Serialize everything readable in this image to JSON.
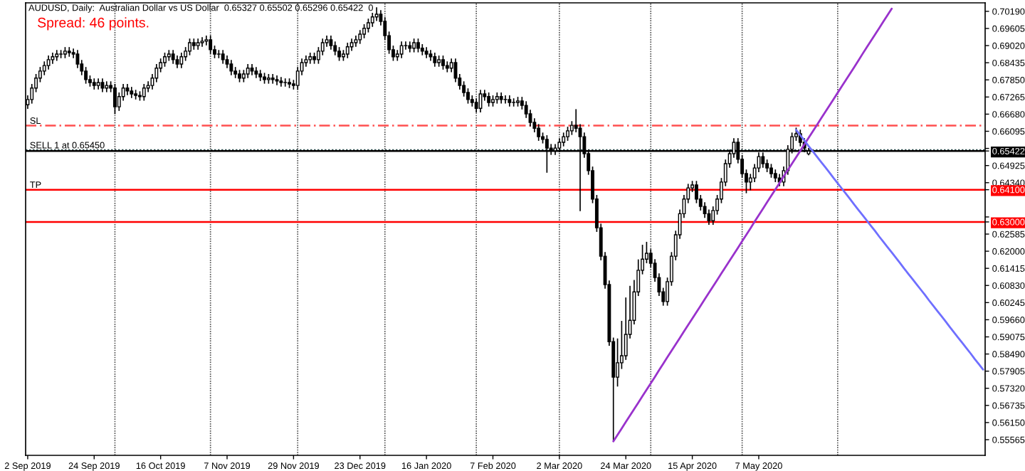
{
  "chart_data": {
    "type": "candlestick",
    "title": "AUDUSD, Daily:  Australian Dollar vs US Dollar  0.65327 0.65502 0.65296 0.65422  0",
    "subtitle": "Spread: 46 points.",
    "color": "#000000",
    "categories": [
      "2 Sep 2019",
      null,
      null,
      null,
      null,
      null,
      null,
      null,
      null,
      null,
      null,
      null,
      null,
      null,
      null,
      null,
      "24 Sep 2019",
      null,
      null,
      null,
      null,
      null,
      null,
      null,
      null,
      null,
      null,
      null,
      null,
      null,
      null,
      null,
      "16 Oct 2019",
      null,
      null,
      null,
      null,
      null,
      null,
      null,
      null,
      null,
      null,
      null,
      null,
      null,
      null,
      null,
      "7 Nov 2019",
      null,
      null,
      null,
      null,
      null,
      null,
      null,
      null,
      null,
      null,
      null,
      null,
      null,
      null,
      null,
      "29 Nov 2019",
      null,
      null,
      null,
      null,
      null,
      null,
      null,
      null,
      null,
      null,
      null,
      null,
      null,
      null,
      null,
      "23 Dec 2019",
      null,
      null,
      null,
      null,
      null,
      null,
      null,
      null,
      null,
      null,
      null,
      null,
      null,
      null,
      null,
      "16 Jan 2020",
      null,
      null,
      null,
      null,
      null,
      null,
      null,
      null,
      null,
      null,
      null,
      null,
      null,
      null,
      null,
      "7 Feb 2020",
      null,
      null,
      null,
      null,
      null,
      null,
      null,
      null,
      null,
      null,
      null,
      null,
      null,
      null,
      null,
      "2 Mar 2020",
      null,
      null,
      null,
      null,
      null,
      null,
      null,
      null,
      null,
      null,
      null,
      null,
      null,
      null,
      null,
      "24 Mar 2020",
      null,
      null,
      null,
      null,
      null,
      null,
      null,
      null,
      null,
      null,
      null,
      null,
      null,
      null,
      null,
      "15 Apr 2020",
      null,
      null,
      null,
      null,
      null,
      null,
      null,
      null,
      null,
      null,
      null,
      null,
      null,
      null,
      null,
      "7 May 2020",
      null,
      null,
      null,
      null,
      null,
      null,
      null,
      null,
      null,
      null,
      null,
      null,
      null,
      null,
      null,
      null,
      null,
      null,
      null,
      null,
      null,
      null,
      null,
      null,
      null,
      null,
      null,
      null,
      null,
      null,
      null,
      null,
      null,
      null,
      null,
      null,
      null,
      null,
      null,
      null,
      null,
      null,
      null,
      null,
      null,
      null,
      null,
      null,
      null,
      null,
      null,
      null,
      null,
      null
    ],
    "ohlc": [
      [
        0.67,
        0.673,
        0.6688,
        0.6718
      ],
      [
        0.6718,
        0.6769,
        0.6706,
        0.6757
      ],
      [
        0.6757,
        0.6803,
        0.6745,
        0.6791
      ],
      [
        0.6791,
        0.6827,
        0.6779,
        0.6815
      ],
      [
        0.6815,
        0.6846,
        0.6803,
        0.6834
      ],
      [
        0.6834,
        0.6866,
        0.6822,
        0.6854
      ],
      [
        0.6854,
        0.6876,
        0.6842,
        0.6864
      ],
      [
        0.6864,
        0.6885,
        0.6852,
        0.6873
      ],
      [
        0.6873,
        0.6885,
        0.6861,
        0.6873
      ],
      [
        0.6873,
        0.6895,
        0.6861,
        0.6883
      ],
      [
        0.6883,
        0.6895,
        0.6866,
        0.6878
      ],
      [
        0.6878,
        0.689,
        0.6861,
        0.6873
      ],
      [
        0.6873,
        0.6885,
        0.6827,
        0.6839
      ],
      [
        0.6839,
        0.6851,
        0.6803,
        0.6815
      ],
      [
        0.6815,
        0.6827,
        0.6774,
        0.6786
      ],
      [
        0.6786,
        0.6798,
        0.6764,
        0.6776
      ],
      [
        0.6776,
        0.6788,
        0.6754,
        0.6766
      ],
      [
        0.6766,
        0.6788,
        0.6754,
        0.6776
      ],
      [
        0.6776,
        0.6788,
        0.6745,
        0.6757
      ],
      [
        0.6757,
        0.6778,
        0.6745,
        0.6766
      ],
      [
        0.6766,
        0.6778,
        0.6745,
        0.6757
      ],
      [
        0.6757,
        0.6769,
        0.667,
        0.6693
      ],
      [
        0.6693,
        0.674,
        0.6681,
        0.6728
      ],
      [
        0.6728,
        0.6769,
        0.6716,
        0.6757
      ],
      [
        0.6757,
        0.6769,
        0.6735,
        0.6747
      ],
      [
        0.6747,
        0.6759,
        0.6725,
        0.6737
      ],
      [
        0.6737,
        0.6749,
        0.672,
        0.6732
      ],
      [
        0.6732,
        0.6744,
        0.6716,
        0.6728
      ],
      [
        0.6728,
        0.6769,
        0.6716,
        0.6757
      ],
      [
        0.6757,
        0.6778,
        0.6745,
        0.6766
      ],
      [
        0.6766,
        0.6803,
        0.6754,
        0.6791
      ],
      [
        0.6791,
        0.6837,
        0.6779,
        0.6825
      ],
      [
        0.6825,
        0.6856,
        0.6813,
        0.6844
      ],
      [
        0.6844,
        0.6876,
        0.6832,
        0.6864
      ],
      [
        0.6864,
        0.6885,
        0.6852,
        0.6873
      ],
      [
        0.6873,
        0.6885,
        0.6842,
        0.6854
      ],
      [
        0.6854,
        0.6866,
        0.6827,
        0.6839
      ],
      [
        0.6839,
        0.6876,
        0.6827,
        0.6864
      ],
      [
        0.6864,
        0.6895,
        0.6852,
        0.6883
      ],
      [
        0.6883,
        0.6924,
        0.6871,
        0.6912
      ],
      [
        0.6912,
        0.6924,
        0.689,
        0.6902
      ],
      [
        0.6902,
        0.6924,
        0.689,
        0.6912
      ],
      [
        0.6912,
        0.6929,
        0.69,
        0.6917
      ],
      [
        0.6917,
        0.6934,
        0.6905,
        0.6922
      ],
      [
        0.6922,
        0.6934,
        0.6876,
        0.6888
      ],
      [
        0.6888,
        0.69,
        0.6861,
        0.6873
      ],
      [
        0.6873,
        0.6885,
        0.6861,
        0.6873
      ],
      [
        0.6873,
        0.6885,
        0.6842,
        0.6854
      ],
      [
        0.6854,
        0.6866,
        0.6827,
        0.6839
      ],
      [
        0.6839,
        0.6851,
        0.6803,
        0.6815
      ],
      [
        0.6815,
        0.6827,
        0.6793,
        0.6805
      ],
      [
        0.6805,
        0.6817,
        0.6779,
        0.6791
      ],
      [
        0.6791,
        0.6817,
        0.6779,
        0.6805
      ],
      [
        0.6805,
        0.6837,
        0.6793,
        0.6825
      ],
      [
        0.6825,
        0.6837,
        0.6803,
        0.6815
      ],
      [
        0.6815,
        0.6827,
        0.6793,
        0.6805
      ],
      [
        0.6805,
        0.6817,
        0.6783,
        0.6795
      ],
      [
        0.6795,
        0.6807,
        0.6774,
        0.6786
      ],
      [
        0.6786,
        0.6803,
        0.6774,
        0.6791
      ],
      [
        0.6791,
        0.6803,
        0.6774,
        0.6786
      ],
      [
        0.6786,
        0.6798,
        0.6769,
        0.6781
      ],
      [
        0.6781,
        0.6793,
        0.6764,
        0.6776
      ],
      [
        0.6776,
        0.6788,
        0.6764,
        0.6776
      ],
      [
        0.6776,
        0.6788,
        0.6759,
        0.6771
      ],
      [
        0.6771,
        0.6783,
        0.6754,
        0.6766
      ],
      [
        0.6766,
        0.6827,
        0.6754,
        0.6815
      ],
      [
        0.6815,
        0.6856,
        0.6803,
        0.6844
      ],
      [
        0.6844,
        0.6866,
        0.6832,
        0.6854
      ],
      [
        0.6854,
        0.6876,
        0.6842,
        0.6864
      ],
      [
        0.6864,
        0.6876,
        0.6842,
        0.6854
      ],
      [
        0.6854,
        0.6895,
        0.6842,
        0.6883
      ],
      [
        0.6883,
        0.6924,
        0.6871,
        0.6912
      ],
      [
        0.6912,
        0.6934,
        0.69,
        0.6922
      ],
      [
        0.6922,
        0.6934,
        0.689,
        0.6902
      ],
      [
        0.6902,
        0.6914,
        0.6871,
        0.6883
      ],
      [
        0.6883,
        0.6895,
        0.6852,
        0.6864
      ],
      [
        0.6864,
        0.6885,
        0.6852,
        0.6873
      ],
      [
        0.6873,
        0.691,
        0.6861,
        0.6898
      ],
      [
        0.6898,
        0.6924,
        0.6886,
        0.6912
      ],
      [
        0.6912,
        0.6934,
        0.69,
        0.6922
      ],
      [
        0.6922,
        0.6953,
        0.691,
        0.6941
      ],
      [
        0.6941,
        0.6973,
        0.6929,
        0.6961
      ],
      [
        0.6961,
        0.6992,
        0.6949,
        0.698
      ],
      [
        0.698,
        0.7012,
        0.6968,
        0.7
      ],
      [
        0.7,
        0.7031,
        0.6988,
        0.7009
      ],
      [
        0.7009,
        0.7021,
        0.6973,
        0.6985
      ],
      [
        0.6985,
        0.6997,
        0.6924,
        0.6936
      ],
      [
        0.6936,
        0.6948,
        0.6876,
        0.6888
      ],
      [
        0.6888,
        0.69,
        0.6852,
        0.6864
      ],
      [
        0.6864,
        0.6885,
        0.6852,
        0.6873
      ],
      [
        0.6873,
        0.6914,
        0.6861,
        0.6902
      ],
      [
        0.6902,
        0.6914,
        0.689,
        0.6902
      ],
      [
        0.6902,
        0.6914,
        0.6881,
        0.6893
      ],
      [
        0.6893,
        0.6924,
        0.6881,
        0.6912
      ],
      [
        0.6912,
        0.6924,
        0.6881,
        0.6893
      ],
      [
        0.6893,
        0.6905,
        0.6871,
        0.6883
      ],
      [
        0.6883,
        0.6895,
        0.6861,
        0.6873
      ],
      [
        0.6873,
        0.6885,
        0.6852,
        0.6864
      ],
      [
        0.6864,
        0.6876,
        0.6832,
        0.6844
      ],
      [
        0.6844,
        0.6866,
        0.6832,
        0.6854
      ],
      [
        0.6854,
        0.6866,
        0.6822,
        0.6834
      ],
      [
        0.6834,
        0.6846,
        0.6813,
        0.6825
      ],
      [
        0.6825,
        0.6856,
        0.6813,
        0.6844
      ],
      [
        0.6844,
        0.6856,
        0.6779,
        0.6791
      ],
      [
        0.6791,
        0.6803,
        0.6754,
        0.6766
      ],
      [
        0.6766,
        0.6778,
        0.673,
        0.6742
      ],
      [
        0.6742,
        0.6754,
        0.6706,
        0.6718
      ],
      [
        0.6718,
        0.673,
        0.6696,
        0.6708
      ],
      [
        0.6708,
        0.672,
        0.6676,
        0.6688
      ],
      [
        0.6688,
        0.6749,
        0.6676,
        0.6737
      ],
      [
        0.6737,
        0.6749,
        0.6716,
        0.6728
      ],
      [
        0.6728,
        0.674,
        0.6696,
        0.6708
      ],
      [
        0.6708,
        0.673,
        0.6696,
        0.6718
      ],
      [
        0.6718,
        0.674,
        0.6706,
        0.6728
      ],
      [
        0.6728,
        0.674,
        0.6706,
        0.6718
      ],
      [
        0.6718,
        0.673,
        0.6706,
        0.6718
      ],
      [
        0.6718,
        0.673,
        0.6696,
        0.6708
      ],
      [
        0.6708,
        0.672,
        0.6696,
        0.6708
      ],
      [
        0.6708,
        0.6725,
        0.6696,
        0.6713
      ],
      [
        0.6713,
        0.6725,
        0.6686,
        0.6698
      ],
      [
        0.6698,
        0.671,
        0.6657,
        0.6669
      ],
      [
        0.6669,
        0.6681,
        0.6628,
        0.664
      ],
      [
        0.664,
        0.6652,
        0.6608,
        0.662
      ],
      [
        0.662,
        0.6632,
        0.6579,
        0.6591
      ],
      [
        0.6591,
        0.6603,
        0.657,
        0.6582
      ],
      [
        0.6582,
        0.6594,
        0.647,
        0.6552
      ],
      [
        0.6552,
        0.6564,
        0.6531,
        0.6543
      ],
      [
        0.6543,
        0.6564,
        0.6531,
        0.6552
      ],
      [
        0.6552,
        0.6584,
        0.654,
        0.6572
      ],
      [
        0.6572,
        0.6603,
        0.656,
        0.6591
      ],
      [
        0.6591,
        0.6623,
        0.6579,
        0.6611
      ],
      [
        0.6611,
        0.6642,
        0.6599,
        0.663
      ],
      [
        0.663,
        0.6683,
        0.6608,
        0.662
      ],
      [
        0.662,
        0.6632,
        0.6339,
        0.6591
      ],
      [
        0.6591,
        0.6603,
        0.6521,
        0.6533
      ],
      [
        0.6533,
        0.6545,
        0.6463,
        0.6475
      ],
      [
        0.6475,
        0.6487,
        0.6366,
        0.6378
      ],
      [
        0.6378,
        0.639,
        0.6268,
        0.628
      ],
      [
        0.628,
        0.6292,
        0.6171,
        0.6183
      ],
      [
        0.6183,
        0.6195,
        0.6074,
        0.6086
      ],
      [
        0.6086,
        0.6098,
        0.5879,
        0.5891
      ],
      [
        0.5891,
        0.5903,
        0.5551,
        0.577
      ],
      [
        0.577,
        0.59,
        0.574,
        0.5819
      ],
      [
        0.5819,
        0.596,
        0.58,
        0.5843
      ],
      [
        0.5843,
        0.604,
        0.5831,
        0.5916
      ],
      [
        0.5916,
        0.608,
        0.5904,
        0.5964
      ],
      [
        0.5964,
        0.61,
        0.5952,
        0.6061
      ],
      [
        0.6061,
        0.617,
        0.6049,
        0.6135
      ],
      [
        0.6135,
        0.622,
        0.6123,
        0.6173
      ],
      [
        0.6173,
        0.623,
        0.6161,
        0.6193
      ],
      [
        0.6193,
        0.6205,
        0.6147,
        0.6159
      ],
      [
        0.6159,
        0.6171,
        0.6098,
        0.611
      ],
      [
        0.611,
        0.6122,
        0.6049,
        0.6061
      ],
      [
        0.6061,
        0.6073,
        0.6016,
        0.6028
      ],
      [
        0.6028,
        0.6108,
        0.6016,
        0.6096
      ],
      [
        0.6096,
        0.6195,
        0.6084,
        0.6183
      ],
      [
        0.6183,
        0.6268,
        0.6171,
        0.6256
      ],
      [
        0.6256,
        0.634,
        0.6244,
        0.6328
      ],
      [
        0.6328,
        0.639,
        0.6316,
        0.6378
      ],
      [
        0.6378,
        0.6428,
        0.6366,
        0.6416
      ],
      [
        0.6416,
        0.6438,
        0.6404,
        0.6426
      ],
      [
        0.6426,
        0.6438,
        0.6366,
        0.6378
      ],
      [
        0.6378,
        0.639,
        0.6341,
        0.6353
      ],
      [
        0.6353,
        0.6365,
        0.6316,
        0.6328
      ],
      [
        0.6328,
        0.634,
        0.6292,
        0.6304
      ],
      [
        0.6304,
        0.6351,
        0.6292,
        0.6339
      ],
      [
        0.6339,
        0.639,
        0.6327,
        0.6378
      ],
      [
        0.6378,
        0.6448,
        0.6366,
        0.6436
      ],
      [
        0.6436,
        0.6511,
        0.6424,
        0.6499
      ],
      [
        0.6499,
        0.6545,
        0.6487,
        0.6533
      ],
      [
        0.6533,
        0.6584,
        0.6521,
        0.6572
      ],
      [
        0.6572,
        0.6584,
        0.6502,
        0.6514
      ],
      [
        0.6514,
        0.6526,
        0.6453,
        0.6465
      ],
      [
        0.6465,
        0.6477,
        0.64,
        0.6436
      ],
      [
        0.6436,
        0.6462,
        0.641,
        0.645
      ],
      [
        0.645,
        0.6496,
        0.6438,
        0.6484
      ],
      [
        0.6484,
        0.6535,
        0.6472,
        0.6523
      ],
      [
        0.6523,
        0.6535,
        0.6487,
        0.6499
      ],
      [
        0.6499,
        0.6511,
        0.6472,
        0.6484
      ],
      [
        0.6484,
        0.6496,
        0.6453,
        0.6465
      ],
      [
        0.6465,
        0.6477,
        0.6438,
        0.645
      ],
      [
        0.645,
        0.6462,
        0.6424,
        0.6436
      ],
      [
        0.6436,
        0.6487,
        0.6424,
        0.6475
      ],
      [
        0.6475,
        0.656,
        0.6463,
        0.6548
      ],
      [
        0.6548,
        0.6603,
        0.6536,
        0.6591
      ],
      [
        0.6591,
        0.662,
        0.6579,
        0.6601
      ],
      [
        0.6601,
        0.6613,
        0.656,
        0.6572
      ],
      [
        0.6572,
        0.6584,
        0.654,
        0.6552
      ],
      [
        0.65327,
        0.65502,
        0.65296,
        0.65422
      ],
      null,
      null,
      null,
      null,
      null,
      null,
      null,
      null,
      null,
      null,
      null,
      null,
      null,
      null,
      null,
      null,
      null,
      null,
      null,
      null,
      null,
      null,
      null,
      null,
      null,
      null,
      null,
      null,
      null,
      null,
      null,
      null,
      null,
      null,
      null,
      null,
      null,
      null,
      null,
      null,
      null,
      null
    ],
    "series": [
      {
        "type": "line",
        "color": "#9932cc",
        "values": [
          null,
          null,
          null,
          null,
          null,
          null,
          null,
          null,
          null,
          null,
          null,
          null,
          null,
          null,
          null,
          null,
          null,
          null,
          null,
          null,
          null,
          null,
          null,
          null,
          null,
          null,
          null,
          null,
          null,
          null,
          null,
          null,
          null,
          null,
          null,
          null,
          null,
          null,
          null,
          null,
          null,
          null,
          null,
          null,
          null,
          null,
          null,
          null,
          null,
          null,
          null,
          null,
          null,
          null,
          null,
          null,
          null,
          null,
          null,
          null,
          null,
          null,
          null,
          null,
          null,
          null,
          null,
          null,
          null,
          null,
          null,
          null,
          null,
          null,
          null,
          null,
          null,
          null,
          null,
          null,
          null,
          null,
          null,
          null,
          null,
          null,
          null,
          null,
          null,
          null,
          null,
          null,
          null,
          null,
          null,
          null,
          null,
          null,
          null,
          null,
          null,
          null,
          null,
          null,
          null,
          null,
          null,
          null,
          null,
          null,
          null,
          null,
          null,
          null,
          null,
          null,
          null,
          null,
          null,
          null,
          null,
          null,
          null,
          null,
          null,
          null,
          null,
          null,
          null,
          null,
          null,
          null,
          null,
          null,
          null,
          null,
          null,
          null,
          null,
          null,
          null,
          0.5551,
          0.5573,
          0.5595,
          0.5617,
          0.5639,
          0.5661,
          0.5683,
          0.5705,
          0.5727,
          0.5749,
          0.5771,
          0.5794,
          0.5816,
          0.5838,
          0.586,
          0.5882,
          0.5904,
          0.5926,
          0.5948,
          0.597,
          0.5992,
          0.6014,
          0.6036,
          0.6058,
          0.608,
          0.6102,
          0.6124,
          0.6146,
          0.6168,
          0.619,
          0.6212,
          0.6234,
          0.6256,
          0.6278,
          0.6301,
          0.6323,
          0.6345,
          0.6367,
          0.6389,
          0.6411,
          0.6433,
          0.6455,
          0.6477,
          0.6499,
          0.6521,
          0.6543,
          0.6565,
          0.6587,
          0.6609,
          0.6631,
          0.6653,
          0.6675,
          0.6697,
          0.6719,
          0.6741,
          0.6763,
          0.6785,
          0.6807,
          0.6829,
          0.6851,
          0.6874,
          0.6896,
          0.6918,
          0.694,
          0.6962,
          0.6984,
          0.7006,
          0.7028,
          null,
          null,
          null,
          null,
          null,
          null,
          null,
          null,
          null,
          null,
          null,
          null,
          null,
          null,
          null,
          null,
          null,
          null,
          null,
          null,
          null,
          null
        ]
      },
      {
        "type": "line",
        "color": "#6f6fff",
        "values": [
          null,
          null,
          null,
          null,
          null,
          null,
          null,
          null,
          null,
          null,
          null,
          null,
          null,
          null,
          null,
          null,
          null,
          null,
          null,
          null,
          null,
          null,
          null,
          null,
          null,
          null,
          null,
          null,
          null,
          null,
          null,
          null,
          null,
          null,
          null,
          null,
          null,
          null,
          null,
          null,
          null,
          null,
          null,
          null,
          null,
          null,
          null,
          null,
          null,
          null,
          null,
          null,
          null,
          null,
          null,
          null,
          null,
          null,
          null,
          null,
          null,
          null,
          null,
          null,
          null,
          null,
          null,
          null,
          null,
          null,
          null,
          null,
          null,
          null,
          null,
          null,
          null,
          null,
          null,
          null,
          null,
          null,
          null,
          null,
          null,
          null,
          null,
          null,
          null,
          null,
          null,
          null,
          null,
          null,
          null,
          null,
          null,
          null,
          null,
          null,
          null,
          null,
          null,
          null,
          null,
          null,
          null,
          null,
          null,
          null,
          null,
          null,
          null,
          null,
          null,
          null,
          null,
          null,
          null,
          null,
          null,
          null,
          null,
          null,
          null,
          null,
          null,
          null,
          null,
          null,
          null,
          null,
          null,
          null,
          null,
          null,
          null,
          null,
          null,
          null,
          null,
          null,
          null,
          null,
          null,
          null,
          null,
          null,
          null,
          null,
          null,
          null,
          null,
          null,
          null,
          null,
          null,
          null,
          null,
          null,
          null,
          null,
          null,
          null,
          null,
          null,
          null,
          null,
          null,
          null,
          null,
          null,
          null,
          null,
          null,
          null,
          null,
          null,
          null,
          null,
          null,
          null,
          null,
          null,
          null,
          0.6614,
          0.6596,
          0.6578,
          0.6559,
          0.6541,
          0.6523,
          0.6505,
          0.6487,
          0.6469,
          0.645,
          0.6432,
          0.6414,
          0.6396,
          0.6378,
          0.6359,
          0.6341,
          0.6323,
          0.6305,
          0.6287,
          0.6269,
          0.625,
          0.6232,
          0.6214,
          0.6196,
          0.6178,
          0.616,
          0.6141,
          0.6123,
          0.6105,
          0.6087,
          0.6069,
          0.6051,
          0.6032,
          0.6014,
          0.5996,
          0.5978,
          0.596,
          0.5941,
          0.5923,
          0.5905,
          0.5887,
          0.5869,
          0.5851,
          0.5832,
          0.5814,
          0.5796
        ]
      }
    ],
    "ylim": [
      0.5503,
      0.7048
    ],
    "yticks": [
      {
        "value": 0.55565,
        "label": "0.55565"
      },
      {
        "value": 0.5615,
        "label": "0.56150"
      },
      {
        "value": 0.56735,
        "label": "0.56735"
      },
      {
        "value": 0.5732,
        "label": "0.57320"
      },
      {
        "value": 0.57905,
        "label": "0.57905"
      },
      {
        "value": 0.5849,
        "label": "0.58490"
      },
      {
        "value": 0.59075,
        "label": "0.59075"
      },
      {
        "value": 0.5966,
        "label": "0.59660"
      },
      {
        "value": 0.60245,
        "label": "0.60245"
      },
      {
        "value": 0.6083,
        "label": "0.60830"
      },
      {
        "value": 0.61415,
        "label": "0.61415"
      },
      {
        "value": 0.62,
        "label": "0.62000"
      },
      {
        "value": 0.62585,
        "label": "0.62585"
      },
      {
        "value": 0.6317,
        "label": null
      },
      {
        "value": 0.63,
        "label": "0.63000"
      },
      {
        "value": 0.6434,
        "label": "0.64340"
      },
      {
        "value": 0.641,
        "label": "0.64100"
      },
      {
        "value": 0.64925,
        "label": "0.64925"
      },
      {
        "value": 0.6551,
        "label": null
      },
      {
        "value": 0.65422,
        "label": "0.65422"
      },
      {
        "value": 0.66095,
        "label": "0.66095"
      },
      {
        "value": 0.6668,
        "label": "0.66680"
      },
      {
        "value": 0.67265,
        "label": "0.67265"
      },
      {
        "value": 0.6785,
        "label": "0.67850"
      },
      {
        "value": 0.68435,
        "label": "0.68435"
      },
      {
        "value": 0.6902,
        "label": "0.69020"
      },
      {
        "value": 0.69605,
        "label": "0.69605"
      },
      {
        "value": 0.7019,
        "label": "0.70190"
      }
    ],
    "ref_lines": [
      {
        "axis": "y",
        "value": 0.66287,
        "label": "SL",
        "color": "#ff5050",
        "line_style": "dashed"
      },
      {
        "axis": "y",
        "value": 0.6545,
        "label": "SELL 1 at 0.65450",
        "color": "#2f4f4f",
        "line_style": "dotted"
      },
      {
        "axis": "y",
        "value": 0.65422,
        "color": "#000000"
      },
      {
        "axis": "y",
        "value": 0.641,
        "label": "TP",
        "color": "#ff0000"
      },
      {
        "axis": "y",
        "value": 0.63,
        "color": "#ff0000"
      }
    ]
  }
}
